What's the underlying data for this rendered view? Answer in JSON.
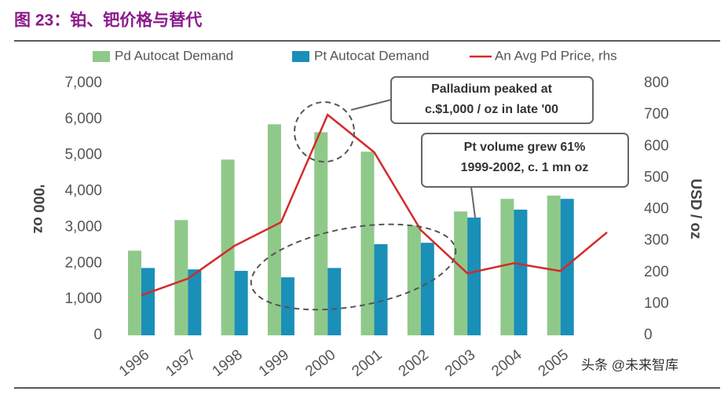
{
  "title": "图 23：铂、钯价格与替代",
  "watermark": "头条 @未来智库",
  "chart_data": {
    "type": "bar_line",
    "y_label": "'000 oz",
    "y2_label": "USD / oz",
    "categories": [
      "1996",
      "1997",
      "1998",
      "1999",
      "2000",
      "2001",
      "2002",
      "2003",
      "2004",
      "2005",
      null
    ],
    "series": [
      {
        "name": "Pd Autocat Demand",
        "type": "bar",
        "color": "#8fc98a",
        "values": [
          2350,
          3200,
          4880,
          5860,
          5640,
          5100,
          3050,
          3440,
          3790,
          3880,
          null
        ]
      },
      {
        "name": "Pt Autocat Demand",
        "type": "bar",
        "color": "#1a8fb8",
        "values": [
          1870,
          1830,
          1790,
          1610,
          1870,
          2530,
          2570,
          3270,
          3490,
          3790,
          null
        ]
      },
      {
        "name": "An Avg Pd Price, rhs",
        "type": "line",
        "axis": "y2",
        "color": "#d42a2a",
        "values": [
          127,
          180,
          284,
          359,
          700,
          581,
          334,
          197,
          229,
          204,
          327
        ]
      }
    ],
    "ylim": [
      0,
      7000
    ],
    "yticks": [
      0,
      {
        "value": 1000,
        "label": "1,000"
      },
      {
        "value": 2000,
        "label": "2,000"
      },
      {
        "value": 3000,
        "label": "3,000"
      },
      {
        "value": 4000,
        "label": "4,000"
      },
      {
        "value": 5000,
        "label": "5,000"
      },
      {
        "value": 6000,
        "label": "6,000"
      },
      {
        "value": 7000,
        "label": "7,000"
      }
    ],
    "y2lim": [
      0,
      800
    ],
    "y2ticks": [
      0,
      100,
      200,
      300,
      400,
      500,
      600,
      700,
      800
    ],
    "annotations": [
      [
        "Palladium peaked at",
        "c.$1,000 / oz in late '00"
      ],
      [
        "Pt volume grew 61%",
        "1999-2002, c. 1 mn oz"
      ]
    ]
  }
}
